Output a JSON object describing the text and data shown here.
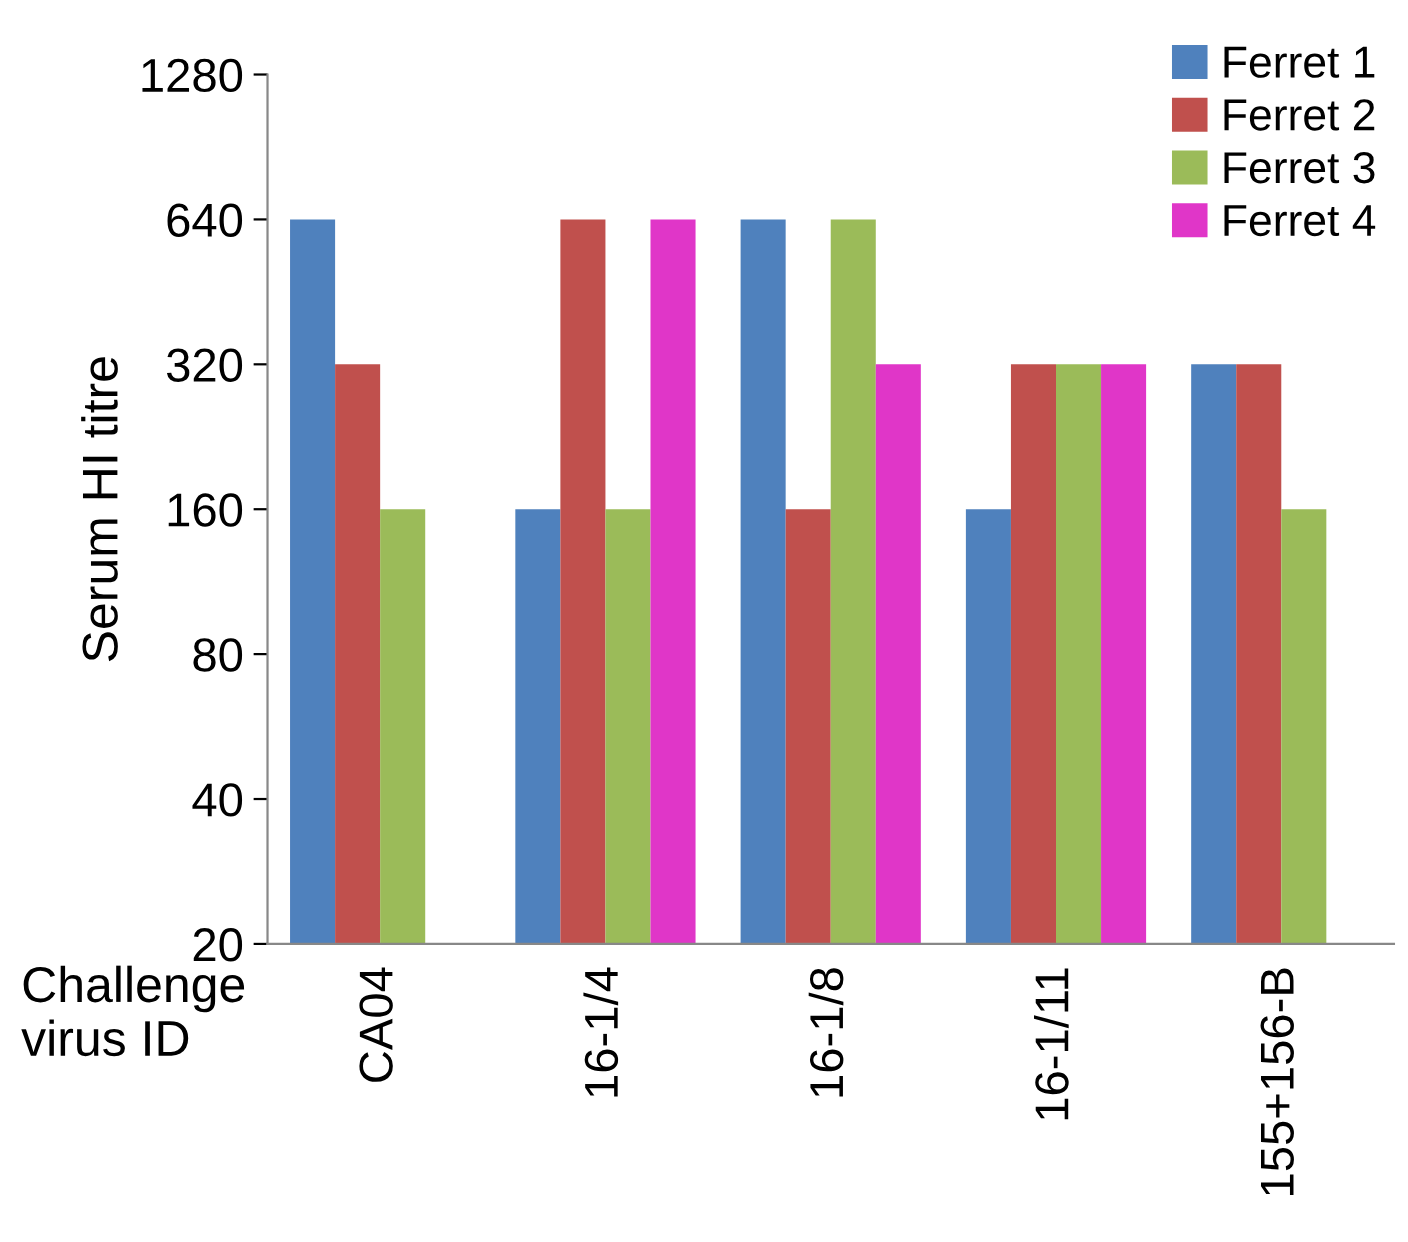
{
  "chart_data": {
    "type": "bar",
    "xlabel": "Challenge\nvirus ID",
    "ylabel": "Serum HI titre",
    "categories": [
      "CA04",
      "16-1/4",
      "16-1/8",
      "16-1/11",
      "155+156-B"
    ],
    "series": [
      {
        "name": "Ferret 1",
        "color": "#4f81bd",
        "values": [
          640,
          160,
          640,
          160,
          320
        ]
      },
      {
        "name": "Ferret 2",
        "color": "#c0504d",
        "values": [
          320,
          640,
          160,
          320,
          320
        ]
      },
      {
        "name": "Ferret 3",
        "color": "#9bbb59",
        "values": [
          160,
          160,
          640,
          320,
          160
        ]
      },
      {
        "name": "Ferret 4",
        "color": "#e036c8",
        "values": [
          null,
          640,
          320,
          320,
          null
        ]
      }
    ],
    "log": "y",
    "ylim": [
      20,
      1280
    ],
    "yticks": [
      20,
      40,
      80,
      160,
      320,
      640,
      1280
    ],
    "grid": false,
    "legend": "top right"
  }
}
